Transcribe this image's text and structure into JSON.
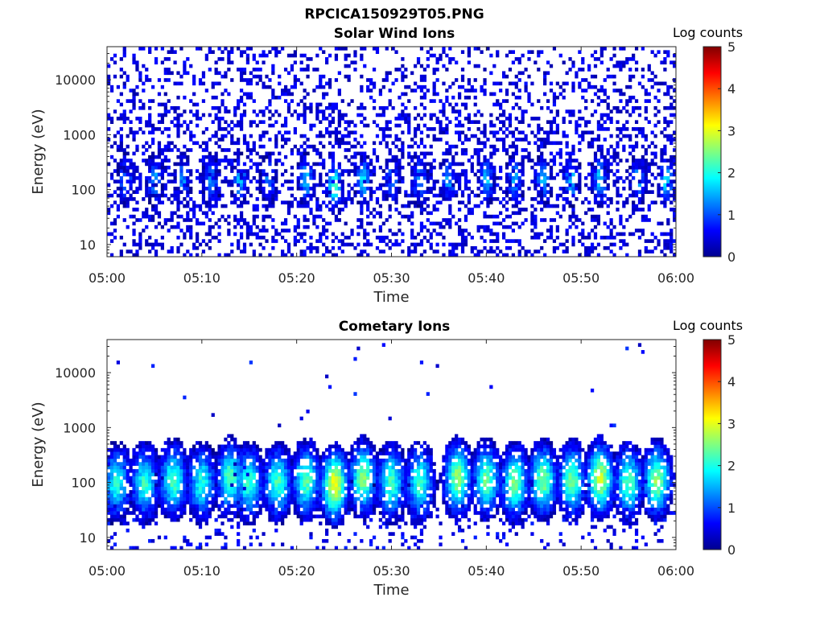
{
  "figure": {
    "title": "RPCICA150929T05.PNG",
    "colorbar_label": "Log counts"
  },
  "chart_data": [
    {
      "type": "heatmap",
      "title": "Solar Wind Ions",
      "xlabel": "Time",
      "ylabel": "Energy (eV)",
      "xticks": [
        "05:00",
        "05:10",
        "05:20",
        "05:30",
        "05:40",
        "05:50",
        "06:00"
      ],
      "xlim": [
        "05:00",
        "06:00"
      ],
      "yscale": "log",
      "yticks": [
        "10",
        "100",
        "1000",
        "10000"
      ],
      "ylim": [
        6,
        40000
      ],
      "colorbar": {
        "label": "Log counts",
        "min": 0,
        "max": 5,
        "ticks": [
          "0",
          "1",
          "2",
          "3",
          "4",
          "5"
        ],
        "colormap": "jet"
      },
      "description_of_content": "sparse low-count background across all energies; weak vertical bursts near 100-300 eV",
      "burst_times_min": [
        2,
        5,
        8,
        11,
        14,
        17,
        21,
        24,
        27,
        30,
        33,
        36,
        40,
        43,
        46,
        49,
        52,
        56,
        59
      ],
      "burst_peak_log_counts": [
        1.3,
        1.4,
        1.3,
        1.3,
        1.5,
        1.3,
        1.6,
        2.2,
        1.8,
        1.3,
        1.4,
        1.4,
        1.6,
        1.5,
        1.5,
        1.6,
        1.7,
        1.4,
        1.8
      ],
      "burst_energy_ev": [
        150,
        150,
        150,
        150,
        150,
        150,
        150,
        120,
        150,
        150,
        150,
        150,
        150,
        150,
        150,
        150,
        150,
        150,
        150
      ]
    },
    {
      "type": "heatmap",
      "title": "Cometary Ions",
      "xlabel": "Time",
      "ylabel": "Energy (eV)",
      "xticks": [
        "05:00",
        "05:10",
        "05:20",
        "05:30",
        "05:40",
        "05:50",
        "06:00"
      ],
      "xlim": [
        "05:00",
        "06:00"
      ],
      "yscale": "log",
      "yticks": [
        "10",
        "100",
        "1000",
        "10000"
      ],
      "ylim": [
        6,
        40000
      ],
      "colorbar": {
        "label": "Log counts",
        "min": 0,
        "max": 5,
        "ticks": [
          "0",
          "1",
          "2",
          "3",
          "4",
          "5"
        ],
        "colormap": "jet"
      },
      "description_of_content": "periodic bursts spanning ~20-600 eV peaking near 100 eV, with sparse points above 1000 eV",
      "burst_times_min": [
        1,
        4,
        7,
        10,
        13,
        15,
        18,
        21,
        24,
        27,
        30,
        33,
        37,
        40,
        43,
        46,
        49,
        52,
        55,
        58
      ],
      "burst_peak_log_counts": [
        2.0,
        2.1,
        2.2,
        2.0,
        2.3,
        2.1,
        2.2,
        2.3,
        3.1,
        2.5,
        2.2,
        2.2,
        2.6,
        2.4,
        2.5,
        2.5,
        2.4,
        2.9,
        2.3,
        2.6
      ],
      "burst_energy_ev": [
        100,
        100,
        110,
        100,
        120,
        100,
        100,
        110,
        90,
        120,
        100,
        100,
        120,
        110,
        100,
        110,
        110,
        120,
        100,
        110
      ]
    }
  ]
}
